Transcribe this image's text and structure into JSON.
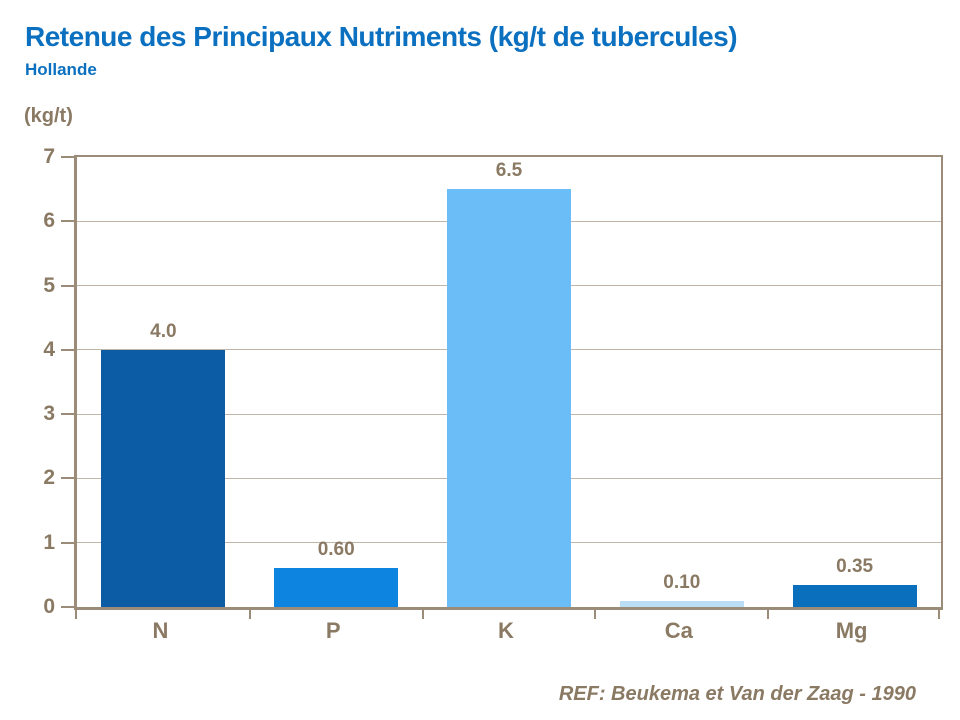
{
  "header": {
    "title": "Retenue des Principaux Nutriments (kg/t de tubercules)",
    "subtitle": "Hollande"
  },
  "footer": {
    "reference": "REF: Beukema et Van der Zaag - 1990"
  },
  "colors": {
    "title_blue": "#0B70C0",
    "axis_text": "#8A7963",
    "axis_line": "#9A8C78",
    "gridline": "#BFB5A8",
    "background": "#FFFFFF"
  },
  "chart_data": {
    "type": "bar",
    "title": "Retenue des Principaux Nutriments (kg/t de tubercules)",
    "subtitle": "Hollande",
    "ylabel": "(kg/t)",
    "xlabel": "",
    "categories": [
      "N",
      "P",
      "K",
      "Ca",
      "Mg"
    ],
    "values": [
      4.0,
      0.6,
      6.5,
      0.1,
      0.35
    ],
    "value_labels": [
      "4.0",
      "0.60",
      "6.5",
      "0.10",
      "0.35"
    ],
    "bar_colors": [
      "#0B5CA4",
      "#0D85E0",
      "#6BBDF8",
      "#BBDDF6",
      "#0A6FBD"
    ],
    "ylim": [
      0,
      7
    ],
    "yticks": [
      0,
      1,
      2,
      3,
      4,
      5,
      6,
      7
    ],
    "grid": true,
    "legend": false
  }
}
